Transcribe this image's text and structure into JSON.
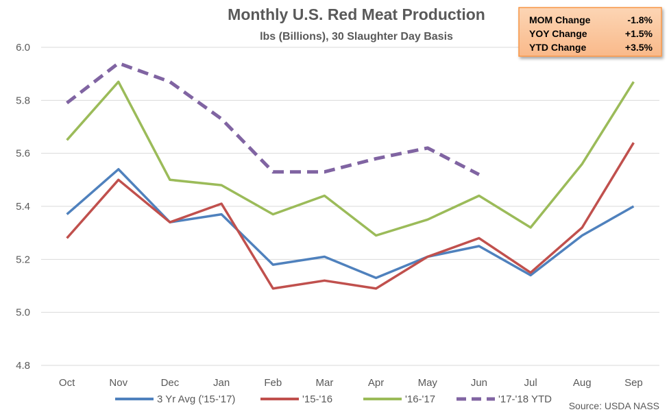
{
  "chart_data": {
    "type": "line",
    "title": "Monthly U.S. Red Meat Production",
    "subtitle": "lbs (Billions), 30 Slaughter Day Basis",
    "categories": [
      "Oct",
      "Nov",
      "Dec",
      "Jan",
      "Feb",
      "Mar",
      "Apr",
      "May",
      "Jun",
      "Jul",
      "Aug",
      "Sep"
    ],
    "ylim": [
      4.8,
      6.0
    ],
    "yticks": [
      "4.8",
      "5.0",
      "5.2",
      "5.4",
      "5.6",
      "5.8",
      "6.0"
    ],
    "grid": true,
    "legend_position": "bottom",
    "series": [
      {
        "name": "3 Yr Avg ('15-'17)",
        "color": "#4F81BD",
        "dashed": false,
        "values": [
          5.37,
          5.54,
          5.34,
          5.37,
          5.18,
          5.21,
          5.13,
          5.21,
          5.25,
          5.14,
          5.29,
          5.4
        ]
      },
      {
        "name": "'15-'16",
        "color": "#C0504D",
        "dashed": false,
        "values": [
          5.28,
          5.5,
          5.34,
          5.41,
          5.09,
          5.12,
          5.09,
          5.21,
          5.28,
          5.15,
          5.32,
          5.64
        ]
      },
      {
        "name": "'16-'17",
        "color": "#9BBB59",
        "dashed": false,
        "values": [
          5.65,
          5.87,
          5.5,
          5.48,
          5.37,
          5.44,
          5.29,
          5.35,
          5.44,
          5.32,
          5.56,
          5.87
        ]
      },
      {
        "name": "'17-'18 YTD",
        "color": "#8064A2",
        "dashed": true,
        "values": [
          5.79,
          5.94,
          5.87,
          5.73,
          5.53,
          5.53,
          5.58,
          5.62,
          5.52,
          null,
          null,
          null
        ]
      }
    ],
    "annotation_box": {
      "rows": [
        {
          "label": "MOM Change",
          "value": "-1.8%"
        },
        {
          "label": "YOY Change",
          "value": "+1.5%"
        },
        {
          "label": "YTD Change",
          "value": "+3.5%"
        }
      ]
    },
    "source": "Source: USDA NASS"
  }
}
